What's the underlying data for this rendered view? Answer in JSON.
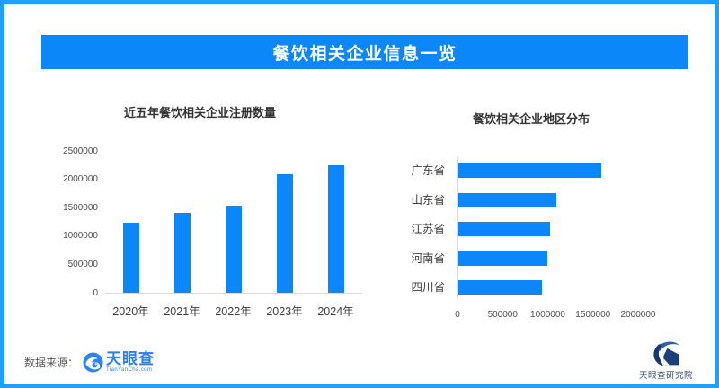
{
  "page": {
    "header": {
      "title": "餐饮相关企业信息一览"
    },
    "footer": {
      "source_label": "数据来源：",
      "tyc_logo_text": "天眼查",
      "tyc_logo_sub": "TianYanCha.com",
      "institute_logo_text": "天眼查研究院"
    },
    "icons": {
      "tyc_logo": "tianyancha-eye-icon",
      "institute_logo": "tianyancha-institute-emblem-icon"
    },
    "colors": {
      "primary_blue": "#0b87fa",
      "frame_border_blue": "#1da1fd",
      "tyc_brand_blue": "#2f7fea",
      "institute_navy": "#16386d",
      "axis_gray": "#d9d9d9"
    }
  },
  "chart_data": [
    {
      "type": "bar",
      "title": "近五年餐饮相关企业注册数量",
      "categories": [
        "2020年",
        "2021年",
        "2022年",
        "2023年",
        "2024年"
      ],
      "values": [
        1230000,
        1410000,
        1530000,
        2090000,
        2240000
      ],
      "xlabel": "",
      "ylabel": "",
      "ylim": [
        0,
        2500000
      ],
      "yticks": [
        0,
        500000,
        1000000,
        1500000,
        2000000,
        2500000
      ],
      "grid": false,
      "legend": false,
      "bar_color": "#0b87fa"
    },
    {
      "type": "bar-horizontal",
      "title": "餐饮相关企业地区分布",
      "categories": [
        "广东省",
        "山东省",
        "江苏省",
        "河南省",
        "四川省"
      ],
      "values": [
        1580000,
        1080000,
        1010000,
        990000,
        930000
      ],
      "xlabel": "",
      "ylabel": "",
      "xlim": [
        0,
        2000000
      ],
      "xticks": [
        0,
        500000,
        1000000,
        1500000,
        2000000
      ],
      "grid": false,
      "legend": false,
      "bar_color": "#0b87fa"
    }
  ]
}
